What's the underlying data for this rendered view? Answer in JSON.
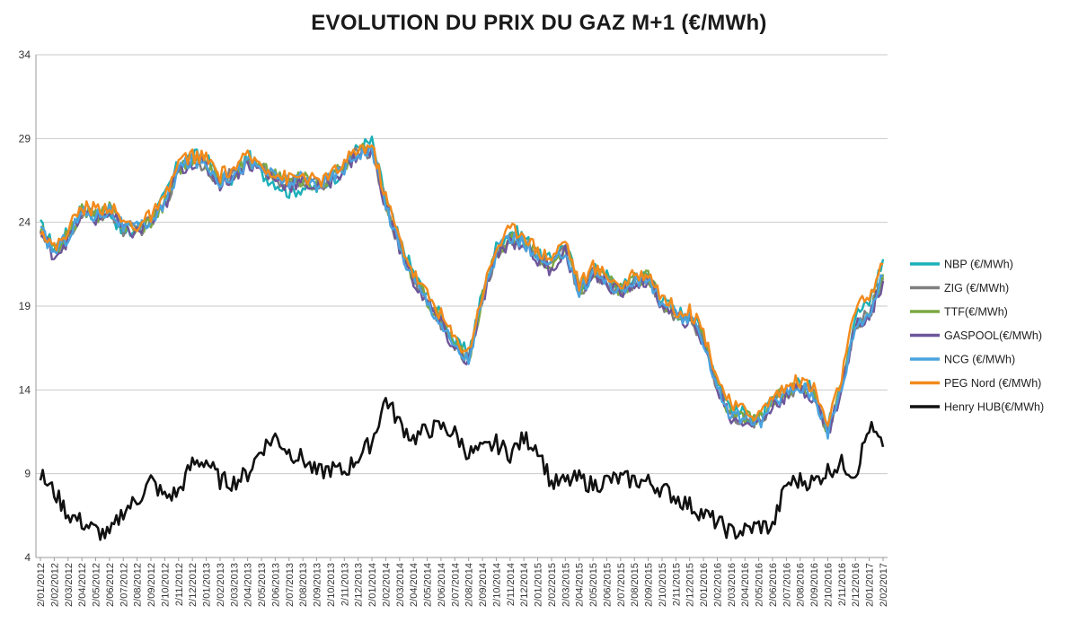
{
  "chart_data": {
    "type": "line",
    "title": "EVOLUTION DU PRIX DU GAZ M+1 (€/MWh)",
    "xlabel": "",
    "ylabel": "",
    "ylim": [
      4,
      34
    ],
    "y_ticks": [
      4,
      9,
      14,
      19,
      24,
      29,
      34
    ],
    "grid": "horizontal",
    "legend_position": "right",
    "x_tick_labels": [
      "2/01/2012",
      "2/02/2012",
      "2/03/2012",
      "2/04/2012",
      "2/05/2012",
      "2/06/2012",
      "2/07/2012",
      "2/08/2012",
      "2/09/2012",
      "2/10/2012",
      "2/11/2012",
      "2/12/2012",
      "2/01/2013",
      "2/02/2013",
      "2/03/2013",
      "2/04/2013",
      "2/05/2013",
      "2/06/2013",
      "2/07/2013",
      "2/08/2013",
      "2/09/2013",
      "2/10/2013",
      "2/11/2013",
      "2/12/2013",
      "2/01/2014",
      "2/02/2014",
      "2/03/2014",
      "2/04/2014",
      "2/05/2014",
      "2/06/2014",
      "2/07/2014",
      "2/08/2014",
      "2/09/2014",
      "2/10/2014",
      "2/11/2014",
      "2/12/2014",
      "2/01/2015",
      "2/02/2015",
      "2/03/2015",
      "2/04/2015",
      "2/05/2015",
      "2/06/2015",
      "2/07/2015",
      "2/08/2015",
      "2/09/2015",
      "2/10/2015",
      "2/11/2015",
      "2/12/2015",
      "2/01/2016",
      "2/02/2016",
      "2/03/2016",
      "2/04/2016",
      "2/05/2016",
      "2/06/2016",
      "2/07/2016",
      "2/08/2016",
      "2/09/2016",
      "2/10/2016",
      "2/11/2016",
      "2/12/2016",
      "2/01/2017",
      "2/02/2017"
    ],
    "x": [
      "2012-01",
      "2012-02",
      "2012-03",
      "2012-04",
      "2012-05",
      "2012-06",
      "2012-07",
      "2012-08",
      "2012-09",
      "2012-10",
      "2012-11",
      "2012-12",
      "2013-01",
      "2013-02",
      "2013-03",
      "2013-04",
      "2013-05",
      "2013-06",
      "2013-07",
      "2013-08",
      "2013-09",
      "2013-10",
      "2013-11",
      "2013-12",
      "2014-01",
      "2014-02",
      "2014-03",
      "2014-04",
      "2014-05",
      "2014-06",
      "2014-07",
      "2014-08",
      "2014-09",
      "2014-10",
      "2014-11",
      "2014-12",
      "2015-01",
      "2015-02",
      "2015-03",
      "2015-04",
      "2015-05",
      "2015-06",
      "2015-07",
      "2015-08",
      "2015-09",
      "2015-10",
      "2015-11",
      "2015-12",
      "2016-01",
      "2016-02",
      "2016-03",
      "2016-04",
      "2016-05",
      "2016-06",
      "2016-07",
      "2016-08",
      "2016-09",
      "2016-10",
      "2016-11",
      "2016-12",
      "2017-01",
      "2017-02"
    ],
    "series": [
      {
        "name": "NBP (€/MWh)",
        "color": "#1BB0B8",
        "values": [
          23.8,
          22.5,
          23.4,
          25.0,
          24.2,
          24.8,
          23.2,
          23.6,
          24.2,
          25.5,
          27.5,
          28.0,
          27.8,
          26.6,
          26.6,
          28.0,
          26.9,
          26.4,
          25.8,
          26.1,
          26.0,
          26.5,
          27.2,
          28.5,
          28.8,
          25.4,
          22.9,
          21.0,
          19.5,
          18.4,
          16.8,
          16.2,
          19.8,
          22.5,
          23.5,
          23.2,
          22.0,
          21.7,
          22.8,
          20.1,
          21.2,
          20.8,
          20.0,
          20.7,
          20.8,
          19.4,
          18.6,
          18.6,
          17.3,
          14.6,
          12.8,
          12.6,
          12.2,
          13.3,
          14.0,
          14.4,
          14.0,
          11.8,
          14.6,
          18.5,
          19.2,
          21.8
        ]
      },
      {
        "name": "ZIG (€/MWh)",
        "color": "#7F7F7F",
        "values": [
          23.5,
          22.1,
          23.1,
          24.6,
          24.3,
          24.7,
          23.6,
          23.5,
          24.0,
          25.0,
          27.3,
          27.8,
          27.4,
          26.4,
          26.9,
          27.7,
          27.2,
          26.7,
          26.3,
          26.5,
          26.2,
          26.6,
          27.3,
          28.2,
          28.3,
          25.1,
          22.5,
          20.6,
          19.3,
          18.0,
          16.5,
          15.8,
          19.4,
          22.1,
          23.0,
          22.8,
          21.8,
          21.3,
          22.4,
          19.8,
          21.0,
          20.5,
          19.8,
          20.5,
          20.6,
          19.2,
          18.4,
          18.2,
          17.0,
          14.2,
          12.4,
          12.3,
          12.0,
          13.2,
          13.8,
          14.2,
          13.7,
          11.5,
          14.1,
          17.9,
          18.5,
          20.7
        ]
      },
      {
        "name": "TTF(€/MWh)",
        "color": "#7BA843",
        "values": [
          23.6,
          22.2,
          23.2,
          24.7,
          24.4,
          24.8,
          23.8,
          23.6,
          24.1,
          25.1,
          27.2,
          27.8,
          27.5,
          26.5,
          27.0,
          27.6,
          27.3,
          26.8,
          26.4,
          26.6,
          26.3,
          26.7,
          27.4,
          28.3,
          28.4,
          25.2,
          22.6,
          20.7,
          19.4,
          18.1,
          16.6,
          15.9,
          19.5,
          22.2,
          23.1,
          22.9,
          21.9,
          21.4,
          22.5,
          19.9,
          21.1,
          20.6,
          19.9,
          20.6,
          20.7,
          19.3,
          18.5,
          18.3,
          17.1,
          14.3,
          12.5,
          12.4,
          12.1,
          13.3,
          13.9,
          14.3,
          13.8,
          11.6,
          14.2,
          18.0,
          18.6,
          20.9
        ]
      },
      {
        "name": "GASPOOL(€/MWh)",
        "color": "#6E569B",
        "values": [
          23.4,
          22.0,
          23.0,
          24.5,
          24.2,
          24.6,
          23.5,
          23.4,
          23.9,
          24.9,
          27.1,
          27.6,
          27.3,
          26.3,
          26.8,
          27.5,
          27.1,
          26.6,
          26.2,
          26.4,
          26.1,
          26.5,
          27.2,
          28.1,
          28.2,
          25.0,
          22.4,
          20.5,
          19.2,
          17.9,
          16.4,
          15.7,
          19.3,
          22.0,
          22.9,
          22.7,
          21.7,
          21.2,
          22.3,
          19.7,
          20.9,
          20.4,
          19.7,
          20.4,
          20.5,
          19.1,
          18.3,
          18.1,
          16.9,
          14.1,
          12.3,
          12.2,
          11.9,
          13.1,
          13.7,
          14.1,
          13.6,
          11.4,
          14.0,
          17.8,
          18.4,
          20.5
        ]
      },
      {
        "name": "NCG (€/MWh)",
        "color": "#4AA3DF",
        "values": [
          23.5,
          22.2,
          23.2,
          24.6,
          24.4,
          24.8,
          23.7,
          23.6,
          24.1,
          25.0,
          27.2,
          27.7,
          27.5,
          26.5,
          26.9,
          27.6,
          27.2,
          26.7,
          26.4,
          26.6,
          26.3,
          26.6,
          27.3,
          28.2,
          28.3,
          25.1,
          22.5,
          20.6,
          19.3,
          18.0,
          16.5,
          15.8,
          19.4,
          22.1,
          23.1,
          22.8,
          21.8,
          21.3,
          22.4,
          19.8,
          21.0,
          20.5,
          19.8,
          20.5,
          20.6,
          19.2,
          18.4,
          18.2,
          17.0,
          14.2,
          12.4,
          12.3,
          12.0,
          13.2,
          13.8,
          14.2,
          13.7,
          11.5,
          14.1,
          17.9,
          18.6,
          20.8
        ]
      },
      {
        "name": "PEG Nord (€/MWh)",
        "color": "#F28A1C",
        "values": [
          23.7,
          22.4,
          23.6,
          24.9,
          24.8,
          25.0,
          24.0,
          23.8,
          24.4,
          25.3,
          27.6,
          28.0,
          27.8,
          26.8,
          27.2,
          27.9,
          27.5,
          26.9,
          26.6,
          26.8,
          26.4,
          26.8,
          27.5,
          28.4,
          28.6,
          25.5,
          23.0,
          21.0,
          19.7,
          18.5,
          17.0,
          16.3,
          19.8,
          22.5,
          23.6,
          23.4,
          22.3,
          21.9,
          23.0,
          20.3,
          21.3,
          20.9,
          20.2,
          20.8,
          21.0,
          19.6,
          18.8,
          18.7,
          17.5,
          14.8,
          13.0,
          12.8,
          12.5,
          13.6,
          14.2,
          14.6,
          14.1,
          11.9,
          14.8,
          18.8,
          19.6,
          21.5
        ]
      },
      {
        "name": "Henry HUB(€/MWh)",
        "color": "#111111",
        "values": [
          8.9,
          7.9,
          6.6,
          6.1,
          5.6,
          5.3,
          6.8,
          7.4,
          8.6,
          7.6,
          7.9,
          9.6,
          9.8,
          8.6,
          8.5,
          9.0,
          10.5,
          11.2,
          10.3,
          9.9,
          9.0,
          9.3,
          9.1,
          10.0,
          10.9,
          13.5,
          12.0,
          11.1,
          11.6,
          11.8,
          11.4,
          10.2,
          10.4,
          10.8,
          10.2,
          11.1,
          10.6,
          8.4,
          8.5,
          8.7,
          8.3,
          8.6,
          8.7,
          8.6,
          8.5,
          8.1,
          7.6,
          7.1,
          6.6,
          6.1,
          5.5,
          5.6,
          5.9,
          5.8,
          8.4,
          8.6,
          8.5,
          9.2,
          9.6,
          9.0,
          11.8,
          10.6
        ]
      }
    ]
  }
}
